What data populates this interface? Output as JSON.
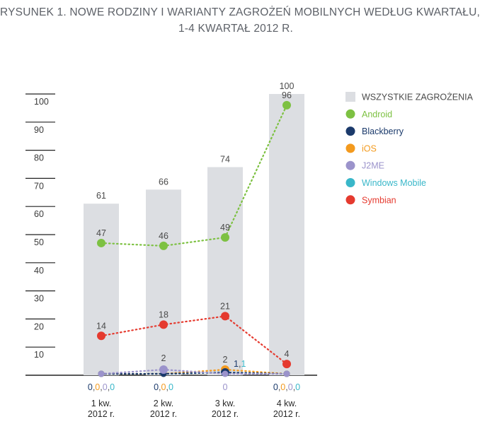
{
  "title_lines": [
    "RYSUNEK 1. NOWE RODZINY I WARIANTY ZAGROŻEŃ MOBILNYCH WEDŁUG KWARTAŁU,",
    "1-4 KWARTAŁ 2012 R."
  ],
  "chart_data": {
    "type": "bar",
    "title": "RYSUNEK 1. NOWE RODZINY I WARIANTY ZAGROŻEŃ MOBILNYCH WEDŁUG KWARTAŁU, 1-4 KWARTAŁ 2012 R.",
    "categories": [
      [
        "1 kw.",
        "2012 r."
      ],
      [
        "2 kw.",
        "2012 r."
      ],
      [
        "3 kw.",
        "2012 r."
      ],
      [
        "4 kw.",
        "2012 r."
      ]
    ],
    "ylim": [
      0,
      100
    ],
    "yticks": [
      10,
      20,
      30,
      40,
      50,
      60,
      70,
      80,
      90,
      100
    ],
    "bar_series": {
      "name": "WSZYSTKIE ZAGROŻENIA",
      "values": [
        61,
        66,
        74,
        100
      ],
      "color": "#dcdee2",
      "label_color": "#4a4a4a"
    },
    "line_series": [
      {
        "name": "Android",
        "values": [
          47,
          46,
          49,
          96
        ],
        "color": "#7dc142",
        "labels": [
          "47",
          "46",
          "49",
          "96"
        ]
      },
      {
        "name": "Blackberry",
        "values": [
          0,
          0,
          1,
          0
        ],
        "color": "#1b3a6b",
        "labels": [
          "0",
          "0",
          "1",
          "0"
        ]
      },
      {
        "name": "iOS",
        "values": [
          0,
          0,
          2,
          0
        ],
        "color": "#f39a1e",
        "labels": [
          "0",
          "0",
          "2",
          "0"
        ]
      },
      {
        "name": "J2ME",
        "values": [
          0,
          2,
          0,
          0
        ],
        "color": "#9b93cb",
        "labels": [
          "0",
          "2",
          "0",
          "0"
        ]
      },
      {
        "name": "Windows Mobile",
        "values": [
          0,
          0,
          1,
          0
        ],
        "color": "#39b7c9",
        "labels": [
          "0",
          "0",
          "1",
          "0"
        ]
      },
      {
        "name": "Symbian",
        "values": [
          14,
          18,
          21,
          4
        ],
        "color": "#e53a2f",
        "labels": [
          "14",
          "18",
          "21",
          "4"
        ]
      }
    ],
    "bottom_labels": [
      [
        {
          "text": "0",
          "color": "#1b3a6b"
        },
        {
          "text": ",",
          "color": "#555555"
        },
        {
          "text": "0",
          "color": "#f39a1e"
        },
        {
          "text": ",",
          "color": "#555555"
        },
        {
          "text": "0",
          "color": "#9b93cb"
        },
        {
          "text": ",",
          "color": "#555555"
        },
        {
          "text": "0",
          "color": "#39b7c9"
        }
      ],
      [
        {
          "text": "0",
          "color": "#1b3a6b"
        },
        {
          "text": ",",
          "color": "#555555"
        },
        {
          "text": "0",
          "color": "#f39a1e"
        },
        {
          "text": ",",
          "color": "#555555"
        },
        {
          "text": "0",
          "color": "#39b7c9"
        }
      ],
      [
        {
          "text": "0",
          "color": "#9b93cb"
        }
      ],
      [
        {
          "text": "0",
          "color": "#1b3a6b"
        },
        {
          "text": ",",
          "color": "#555555"
        },
        {
          "text": "0",
          "color": "#f39a1e"
        },
        {
          "text": ",",
          "color": "#555555"
        },
        {
          "text": "0",
          "color": "#9b93cb"
        },
        {
          "text": ",",
          "color": "#555555"
        },
        {
          "text": "0",
          "color": "#39b7c9"
        }
      ]
    ],
    "annotation_q3": [
      {
        "text": "1",
        "color": "#1b3a6b"
      },
      {
        "text": ",",
        "color": "#555555"
      },
      {
        "text": "1",
        "color": "#39b7c9"
      }
    ],
    "legend_position": "right",
    "grid": false
  }
}
